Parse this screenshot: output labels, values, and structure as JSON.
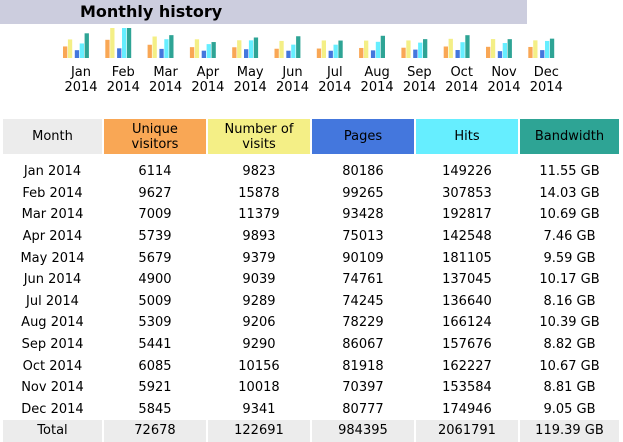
{
  "title": "Monthly history",
  "colors": {
    "header_band": "#cccdde",
    "unique_visitors": "#f9a755",
    "visits": "#f4ef86",
    "pages": "#4477dd",
    "hits": "#66eeff",
    "bandwidth": "#2ea495",
    "month_header": "#ececec"
  },
  "chart_data": {
    "type": "bar",
    "categories": [
      "Jan 2014",
      "Feb 2014",
      "Mar 2014",
      "Apr 2014",
      "May 2014",
      "Jun 2014",
      "Jul 2014",
      "Aug 2014",
      "Sep 2014",
      "Oct 2014",
      "Nov 2014",
      "Dec 2014"
    ],
    "series": [
      {
        "name": "Unique visitors",
        "values": [
          6114,
          9627,
          7009,
          5739,
          5679,
          4900,
          5009,
          5309,
          5441,
          6085,
          5921,
          5845
        ]
      },
      {
        "name": "Number of visits",
        "values": [
          9823,
          15878,
          11379,
          9893,
          9379,
          9039,
          9289,
          9206,
          9290,
          10156,
          10018,
          9341
        ]
      },
      {
        "name": "Pages",
        "values": [
          80186,
          99265,
          93428,
          75013,
          90109,
          74761,
          74245,
          78229,
          86067,
          81918,
          70397,
          80777
        ]
      },
      {
        "name": "Hits",
        "values": [
          149226,
          307853,
          192817,
          142548,
          181105,
          137045,
          136640,
          166124,
          157676,
          162227,
          153584,
          174946
        ]
      },
      {
        "name": "Bandwidth",
        "values": [
          11.55,
          14.03,
          10.69,
          7.46,
          9.59,
          10.17,
          8.16,
          10.39,
          8.82,
          10.67,
          8.81,
          9.05
        ]
      }
    ]
  },
  "month_labels": [
    {
      "m": "Jan",
      "y": "2014"
    },
    {
      "m": "Feb",
      "y": "2014"
    },
    {
      "m": "Mar",
      "y": "2014"
    },
    {
      "m": "Apr",
      "y": "2014"
    },
    {
      "m": "May",
      "y": "2014"
    },
    {
      "m": "Jun",
      "y": "2014"
    },
    {
      "m": "Jul",
      "y": "2014"
    },
    {
      "m": "Aug",
      "y": "2014"
    },
    {
      "m": "Sep",
      "y": "2014"
    },
    {
      "m": "Oct",
      "y": "2014"
    },
    {
      "m": "Nov",
      "y": "2014"
    },
    {
      "m": "Dec",
      "y": "2014"
    }
  ],
  "table": {
    "headers": {
      "month": "Month",
      "unique_visitors": [
        "Unique",
        "visitors"
      ],
      "visits": [
        "Number of",
        "visits"
      ],
      "pages": "Pages",
      "hits": "Hits",
      "bandwidth": "Bandwidth"
    },
    "rows": [
      [
        "Jan 2014",
        "6114",
        "9823",
        "80186",
        "149226",
        "11.55 GB"
      ],
      [
        "Feb 2014",
        "9627",
        "15878",
        "99265",
        "307853",
        "14.03 GB"
      ],
      [
        "Mar 2014",
        "7009",
        "11379",
        "93428",
        "192817",
        "10.69 GB"
      ],
      [
        "Apr 2014",
        "5739",
        "9893",
        "75013",
        "142548",
        "7.46 GB"
      ],
      [
        "May 2014",
        "5679",
        "9379",
        "90109",
        "181105",
        "9.59 GB"
      ],
      [
        "Jun 2014",
        "4900",
        "9039",
        "74761",
        "137045",
        "10.17 GB"
      ],
      [
        "Jul 2014",
        "5009",
        "9289",
        "74245",
        "136640",
        "8.16 GB"
      ],
      [
        "Aug 2014",
        "5309",
        "9206",
        "78229",
        "166124",
        "10.39 GB"
      ],
      [
        "Sep 2014",
        "5441",
        "9290",
        "86067",
        "157676",
        "8.82 GB"
      ],
      [
        "Oct 2014",
        "6085",
        "10156",
        "81918",
        "162227",
        "10.67 GB"
      ],
      [
        "Nov 2014",
        "5921",
        "10018",
        "70397",
        "153584",
        "8.81 GB"
      ],
      [
        "Dec 2014",
        "5845",
        "9341",
        "80777",
        "174946",
        "9.05 GB"
      ]
    ],
    "total": [
      "Total",
      "72678",
      "122691",
      "984395",
      "2061791",
      "119.39 GB"
    ]
  }
}
